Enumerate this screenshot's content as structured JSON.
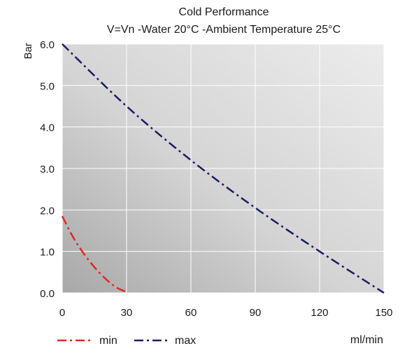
{
  "chart_data": {
    "type": "line",
    "title": "Cold Performance",
    "subtitle": "V=Vn -Water 20°C -Ambient Temperature 25°C",
    "ylabel": "Bar",
    "xlabel": "ml/min",
    "xlim": [
      0,
      150
    ],
    "ylim": [
      0,
      6
    ],
    "x_ticks": [
      "0",
      "30",
      "60",
      "90",
      "120",
      "150"
    ],
    "y_ticks": [
      "0.0",
      "1.0",
      "2.0",
      "3.0",
      "4.0",
      "5.0",
      "6.0"
    ],
    "grid": true,
    "legend": "bottom-left",
    "series": [
      {
        "name": "min",
        "color": "#e0281e",
        "points": [
          [
            0,
            1.85
          ],
          [
            5,
            1.35
          ],
          [
            10,
            0.95
          ],
          [
            15,
            0.62
          ],
          [
            20,
            0.35
          ],
          [
            25,
            0.14
          ],
          [
            30,
            0.02
          ]
        ]
      },
      {
        "name": "max",
        "color": "#1b1b63",
        "points": [
          [
            0,
            6.0
          ],
          [
            30,
            4.5
          ],
          [
            60,
            3.2
          ],
          [
            90,
            2.05
          ],
          [
            120,
            1.0
          ],
          [
            150,
            0.0
          ]
        ]
      }
    ]
  }
}
